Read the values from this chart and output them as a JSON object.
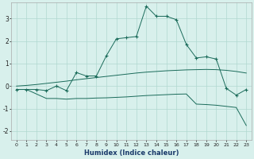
{
  "xlabel": "Humidex (Indice chaleur)",
  "bg_color": "#d8f0ec",
  "grid_color": "#b0d8d0",
  "line_color": "#1a6b5a",
  "xlim": [
    -0.5,
    23.5
  ],
  "ylim": [
    -2.4,
    3.7
  ],
  "xticks": [
    0,
    1,
    2,
    3,
    4,
    5,
    6,
    7,
    8,
    9,
    10,
    11,
    12,
    13,
    14,
    15,
    16,
    17,
    18,
    19,
    20,
    21,
    22,
    23
  ],
  "yticks": [
    -2,
    -1,
    0,
    1,
    2,
    3
  ],
  "main_x": [
    0,
    1,
    2,
    3,
    4,
    5,
    6,
    7,
    8,
    9,
    10,
    11,
    12,
    13,
    14,
    15,
    16,
    17,
    18,
    19,
    20,
    21,
    22,
    23
  ],
  "main_y": [
    -0.15,
    -0.15,
    -0.15,
    -0.2,
    -0.0,
    -0.2,
    0.6,
    0.45,
    0.45,
    1.35,
    2.1,
    2.15,
    2.2,
    3.55,
    3.1,
    3.1,
    2.95,
    1.85,
    1.25,
    1.3,
    1.2,
    -0.1,
    -0.4,
    -0.15
  ],
  "upper_x": [
    0,
    1,
    2,
    3,
    4,
    5,
    6,
    7,
    8,
    9,
    10,
    11,
    12,
    13,
    14,
    15,
    16,
    17,
    18,
    19,
    20,
    21,
    22,
    23
  ],
  "upper_y": [
    0.0,
    0.03,
    0.07,
    0.12,
    0.17,
    0.22,
    0.28,
    0.33,
    0.38,
    0.43,
    0.48,
    0.53,
    0.58,
    0.62,
    0.65,
    0.68,
    0.7,
    0.72,
    0.73,
    0.74,
    0.73,
    0.7,
    0.65,
    0.58
  ],
  "lower_x": [
    0,
    1,
    2,
    3,
    4,
    5,
    6,
    7,
    8,
    9,
    10,
    11,
    12,
    13,
    14,
    15,
    16,
    17,
    18,
    19,
    20,
    21,
    22,
    23
  ],
  "lower_y": [
    -0.15,
    -0.15,
    -0.35,
    -0.55,
    -0.55,
    -0.58,
    -0.55,
    -0.55,
    -0.53,
    -0.52,
    -0.5,
    -0.48,
    -0.45,
    -0.42,
    -0.4,
    -0.38,
    -0.36,
    -0.35,
    -0.8,
    -0.82,
    -0.85,
    -0.9,
    -0.95,
    -1.75
  ]
}
